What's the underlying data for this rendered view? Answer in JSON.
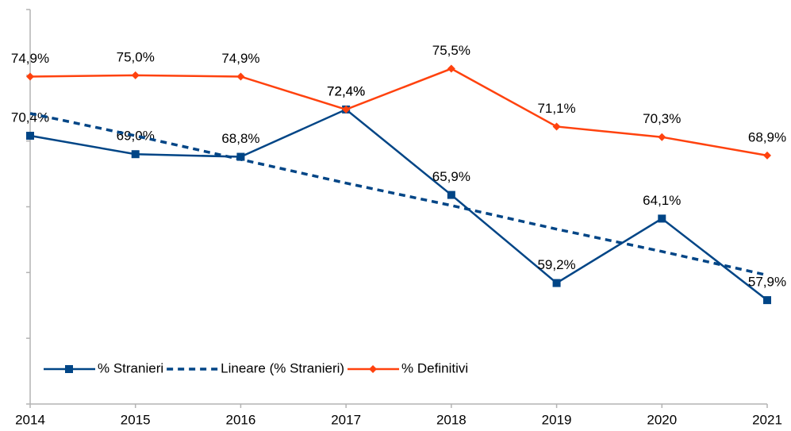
{
  "chart_data": {
    "type": "line",
    "categories": [
      "2014",
      "2015",
      "2016",
      "2017",
      "2018",
      "2019",
      "2020",
      "2021"
    ],
    "series": [
      {
        "name": "% Stranieri",
        "color": "#004586",
        "marker": "square",
        "values": [
          70.4,
          69.0,
          68.8,
          72.4,
          65.9,
          59.2,
          64.1,
          57.9
        ],
        "value_labels": [
          "70,4%",
          "69,0%",
          "68,8%",
          "72,4%",
          "65,9%",
          "59,2%",
          "64,1%",
          "57,9%"
        ]
      },
      {
        "name": "Lineare (% Stranieri)",
        "color": "#004586",
        "dashed": true,
        "values": [
          72.1,
          70.4,
          68.6,
          66.8,
          65.1,
          63.3,
          61.6,
          59.8
        ]
      },
      {
        "name": "% Definitivi",
        "color": "#ff420e",
        "marker": "diamond",
        "values": [
          74.9,
          75.0,
          74.9,
          72.4,
          75.5,
          71.1,
          70.3,
          68.9
        ],
        "value_labels": [
          "74,9%",
          "75,0%",
          "74,9%",
          "72,4%",
          "75,5%",
          "71,1%",
          "70,3%",
          "68,9%"
        ]
      }
    ],
    "ylim": [
      50,
      80
    ],
    "yticks": [
      50,
      55,
      60,
      65,
      70,
      75,
      80
    ],
    "legend": "bottom-left"
  }
}
